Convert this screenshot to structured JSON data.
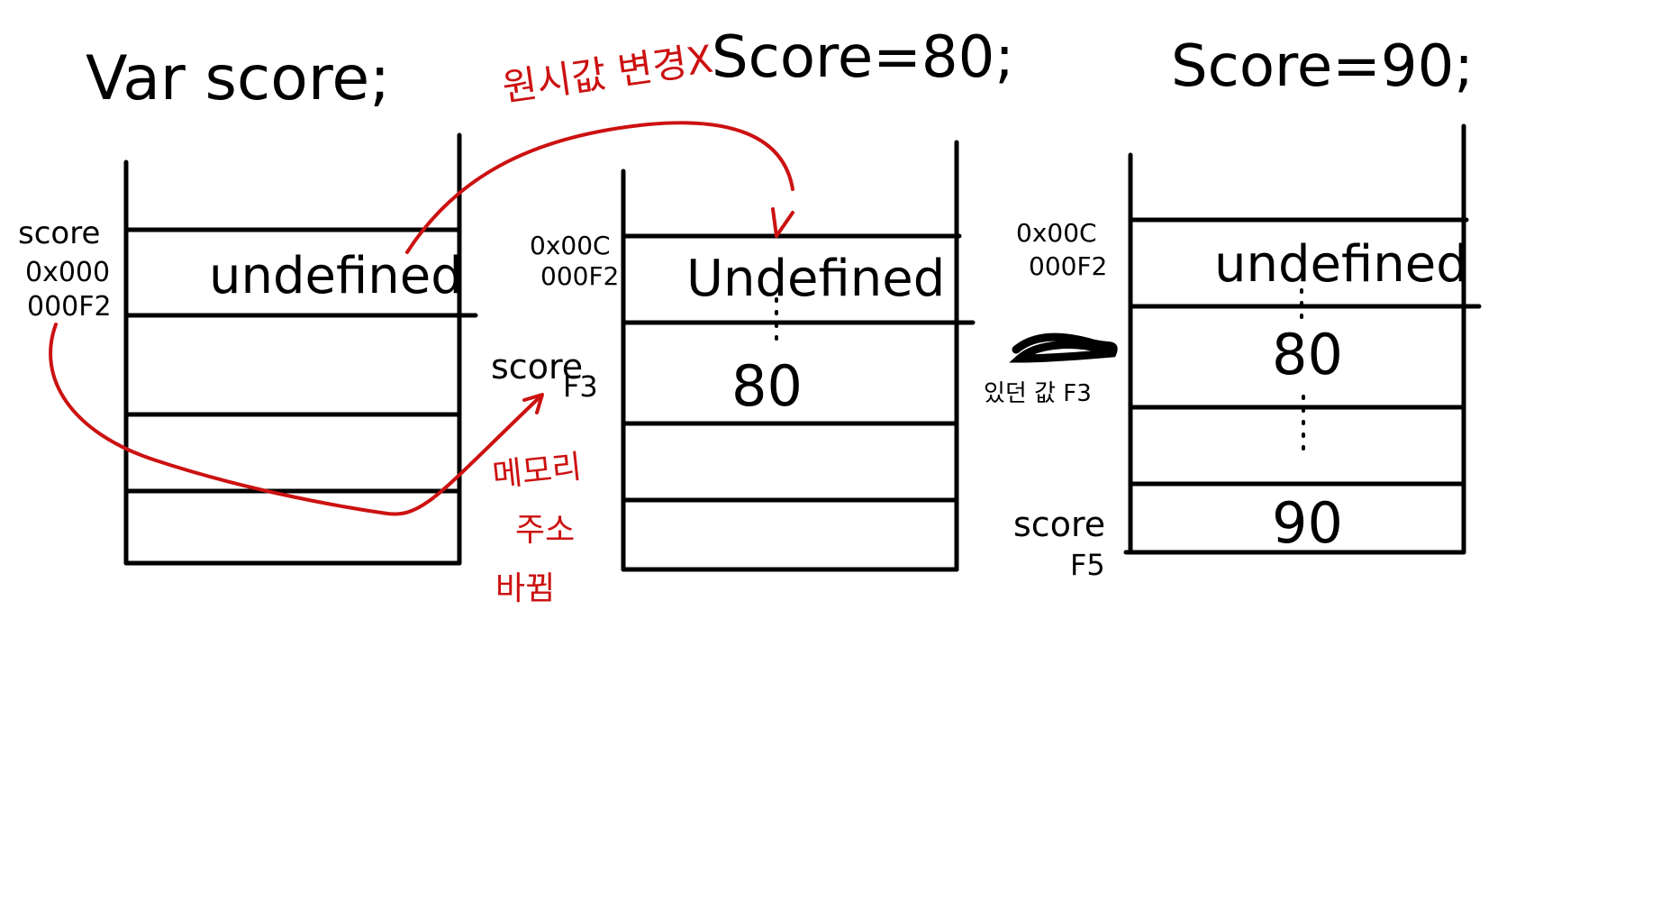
{
  "headers": {
    "declare": "Var score;",
    "assign80": "Score=80;",
    "assign90": "Score=90;"
  },
  "annotations": {
    "no_overwrite": "원시값 변경X",
    "memory_address_change_line1": "메모리",
    "memory_address_change_line2": "주소",
    "memory_address_change_line3": "바뀜",
    "existing_value": "있던 값 F3"
  },
  "stack1": {
    "label_name": "score",
    "addr_line1": "0x000",
    "addr_line2": "000F2",
    "cell_value": "undefined"
  },
  "stack2": {
    "addr_line1": "0x00C",
    "addr_line2": "000F2",
    "cell_value_1": "Undefined",
    "cell_value_2": "80",
    "label_name": "score",
    "label_addr": "F3"
  },
  "stack3": {
    "addr_line1": "0x00C",
    "addr_line2": "000F2",
    "cell_value_1": "undefined",
    "cell_value_2": "80",
    "cell_value_4": "90",
    "label_name": "score",
    "label_addr": "F5"
  },
  "colors": {
    "ink": "#000000",
    "annotation": "#cc1111",
    "background": "#ffffff"
  }
}
